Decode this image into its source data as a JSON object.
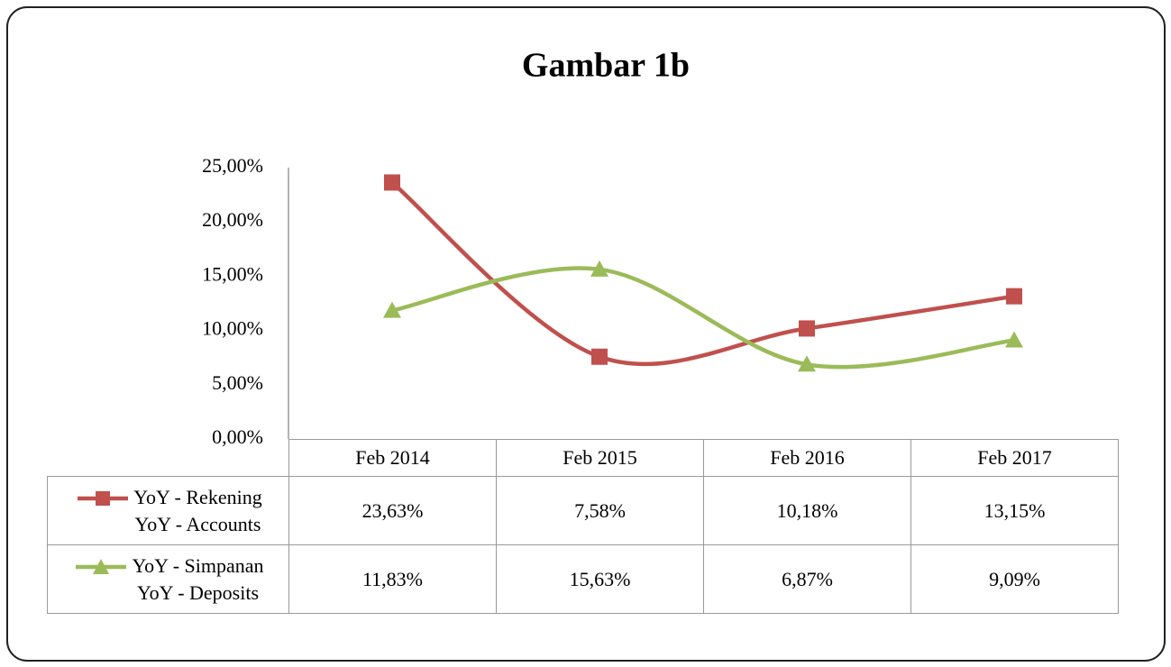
{
  "chart_data": {
    "type": "line",
    "title": "Gambar 1b",
    "categories": [
      "Feb 2014",
      "Feb 2015",
      "Feb 2016",
      "Feb 2017"
    ],
    "series": [
      {
        "name": "YoY - Rekening\nYoY - Accounts",
        "color": "#c0504d",
        "marker": "square",
        "values": [
          23.63,
          7.58,
          10.18,
          13.15
        ],
        "value_labels": [
          "23,63%",
          "7,58%",
          "10,18%",
          "13,15%"
        ]
      },
      {
        "name": "YoY - Simpanan\nYoY - Deposits",
        "color": "#9bbb59",
        "marker": "triangle",
        "values": [
          11.83,
          15.63,
          6.87,
          9.09
        ],
        "value_labels": [
          "11,83%",
          "15,63%",
          "6,87%",
          "9,09%"
        ]
      }
    ],
    "ylim": [
      0,
      25
    ],
    "yticks": [
      {
        "value": 0,
        "label": "0,00%"
      },
      {
        "value": 5,
        "label": "5,00%"
      },
      {
        "value": 10,
        "label": "10,00%"
      },
      {
        "value": 15,
        "label": "15,00%"
      },
      {
        "value": 20,
        "label": "20,00%"
      },
      {
        "value": 25,
        "label": "25,00%"
      }
    ],
    "smooth": true,
    "grid": false,
    "data_table": true
  }
}
